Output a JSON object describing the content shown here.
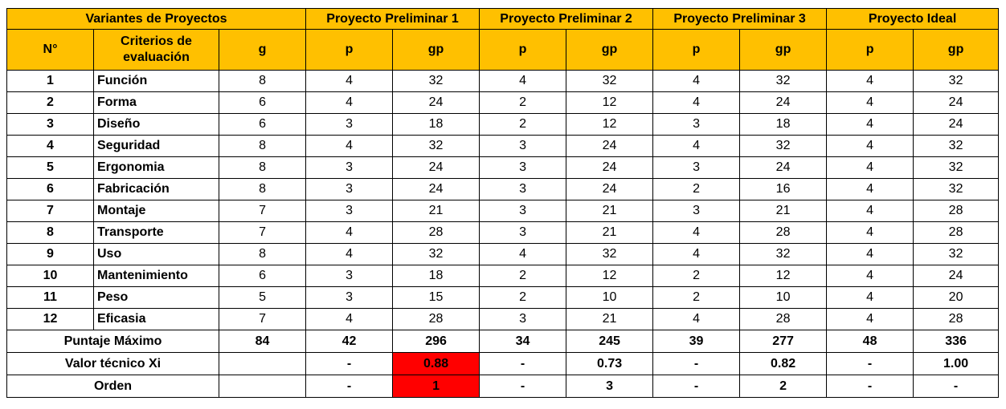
{
  "header": {
    "variants_label": "Variantes de Proyectos",
    "projects": [
      "Proyecto Preliminar 1",
      "Proyecto Preliminar 2",
      "Proyecto Preliminar 3",
      "Proyecto Ideal"
    ],
    "num_label": "N°",
    "criteria_label": "Criterios de evaluación",
    "g_label": "g",
    "p_label": "p",
    "gp_label": "gp"
  },
  "rows": [
    {
      "n": "1",
      "criterion": "Función",
      "g": "8",
      "vals": [
        "4",
        "32",
        "4",
        "32",
        "4",
        "32",
        "4",
        "32"
      ]
    },
    {
      "n": "2",
      "criterion": "Forma",
      "g": "6",
      "vals": [
        "4",
        "24",
        "2",
        "12",
        "4",
        "24",
        "4",
        "24"
      ]
    },
    {
      "n": "3",
      "criterion": "Diseño",
      "g": "6",
      "vals": [
        "3",
        "18",
        "2",
        "12",
        "3",
        "18",
        "4",
        "24"
      ]
    },
    {
      "n": "4",
      "criterion": "Seguridad",
      "g": "8",
      "vals": [
        "4",
        "32",
        "3",
        "24",
        "4",
        "32",
        "4",
        "32"
      ]
    },
    {
      "n": "5",
      "criterion": "Ergonomia",
      "g": "8",
      "vals": [
        "3",
        "24",
        "3",
        "24",
        "3",
        "24",
        "4",
        "32"
      ]
    },
    {
      "n": "6",
      "criterion": "Fabricación",
      "g": "8",
      "vals": [
        "3",
        "24",
        "3",
        "24",
        "2",
        "16",
        "4",
        "32"
      ]
    },
    {
      "n": "7",
      "criterion": "Montaje",
      "g": "7",
      "vals": [
        "3",
        "21",
        "3",
        "21",
        "3",
        "21",
        "4",
        "28"
      ]
    },
    {
      "n": "8",
      "criterion": "Transporte",
      "g": "7",
      "vals": [
        "4",
        "28",
        "3",
        "21",
        "4",
        "28",
        "4",
        "28"
      ]
    },
    {
      "n": "9",
      "criterion": "Uso",
      "g": "8",
      "vals": [
        "4",
        "32",
        "4",
        "32",
        "4",
        "32",
        "4",
        "32"
      ]
    },
    {
      "n": "10",
      "criterion": "Mantenimiento",
      "g": "6",
      "vals": [
        "3",
        "18",
        "2",
        "12",
        "2",
        "12",
        "4",
        "24"
      ]
    },
    {
      "n": "11",
      "criterion": "Peso",
      "g": "5",
      "vals": [
        "3",
        "15",
        "2",
        "10",
        "2",
        "10",
        "4",
        "20"
      ]
    },
    {
      "n": "12",
      "criterion": "Eficasia",
      "g": "7",
      "vals": [
        "4",
        "28",
        "3",
        "21",
        "4",
        "28",
        "4",
        "28"
      ]
    }
  ],
  "totals": {
    "label": "Puntaje Máximo",
    "g": "84",
    "vals": [
      "42",
      "296",
      "34",
      "245",
      "39",
      "277",
      "48",
      "336"
    ]
  },
  "technical_value": {
    "label": "Valor técnico Xi",
    "g": "",
    "vals": [
      "-",
      "0.88",
      "-",
      "0.73",
      "-",
      "0.82",
      "-",
      "1.00"
    ]
  },
  "order": {
    "label": "Orden",
    "g": "",
    "vals": [
      "-",
      "1",
      "-",
      "3",
      "-",
      "2",
      "-",
      "-"
    ]
  },
  "colors": {
    "header_fill": "#ffc000",
    "highlight_fill": "#ff0000"
  }
}
